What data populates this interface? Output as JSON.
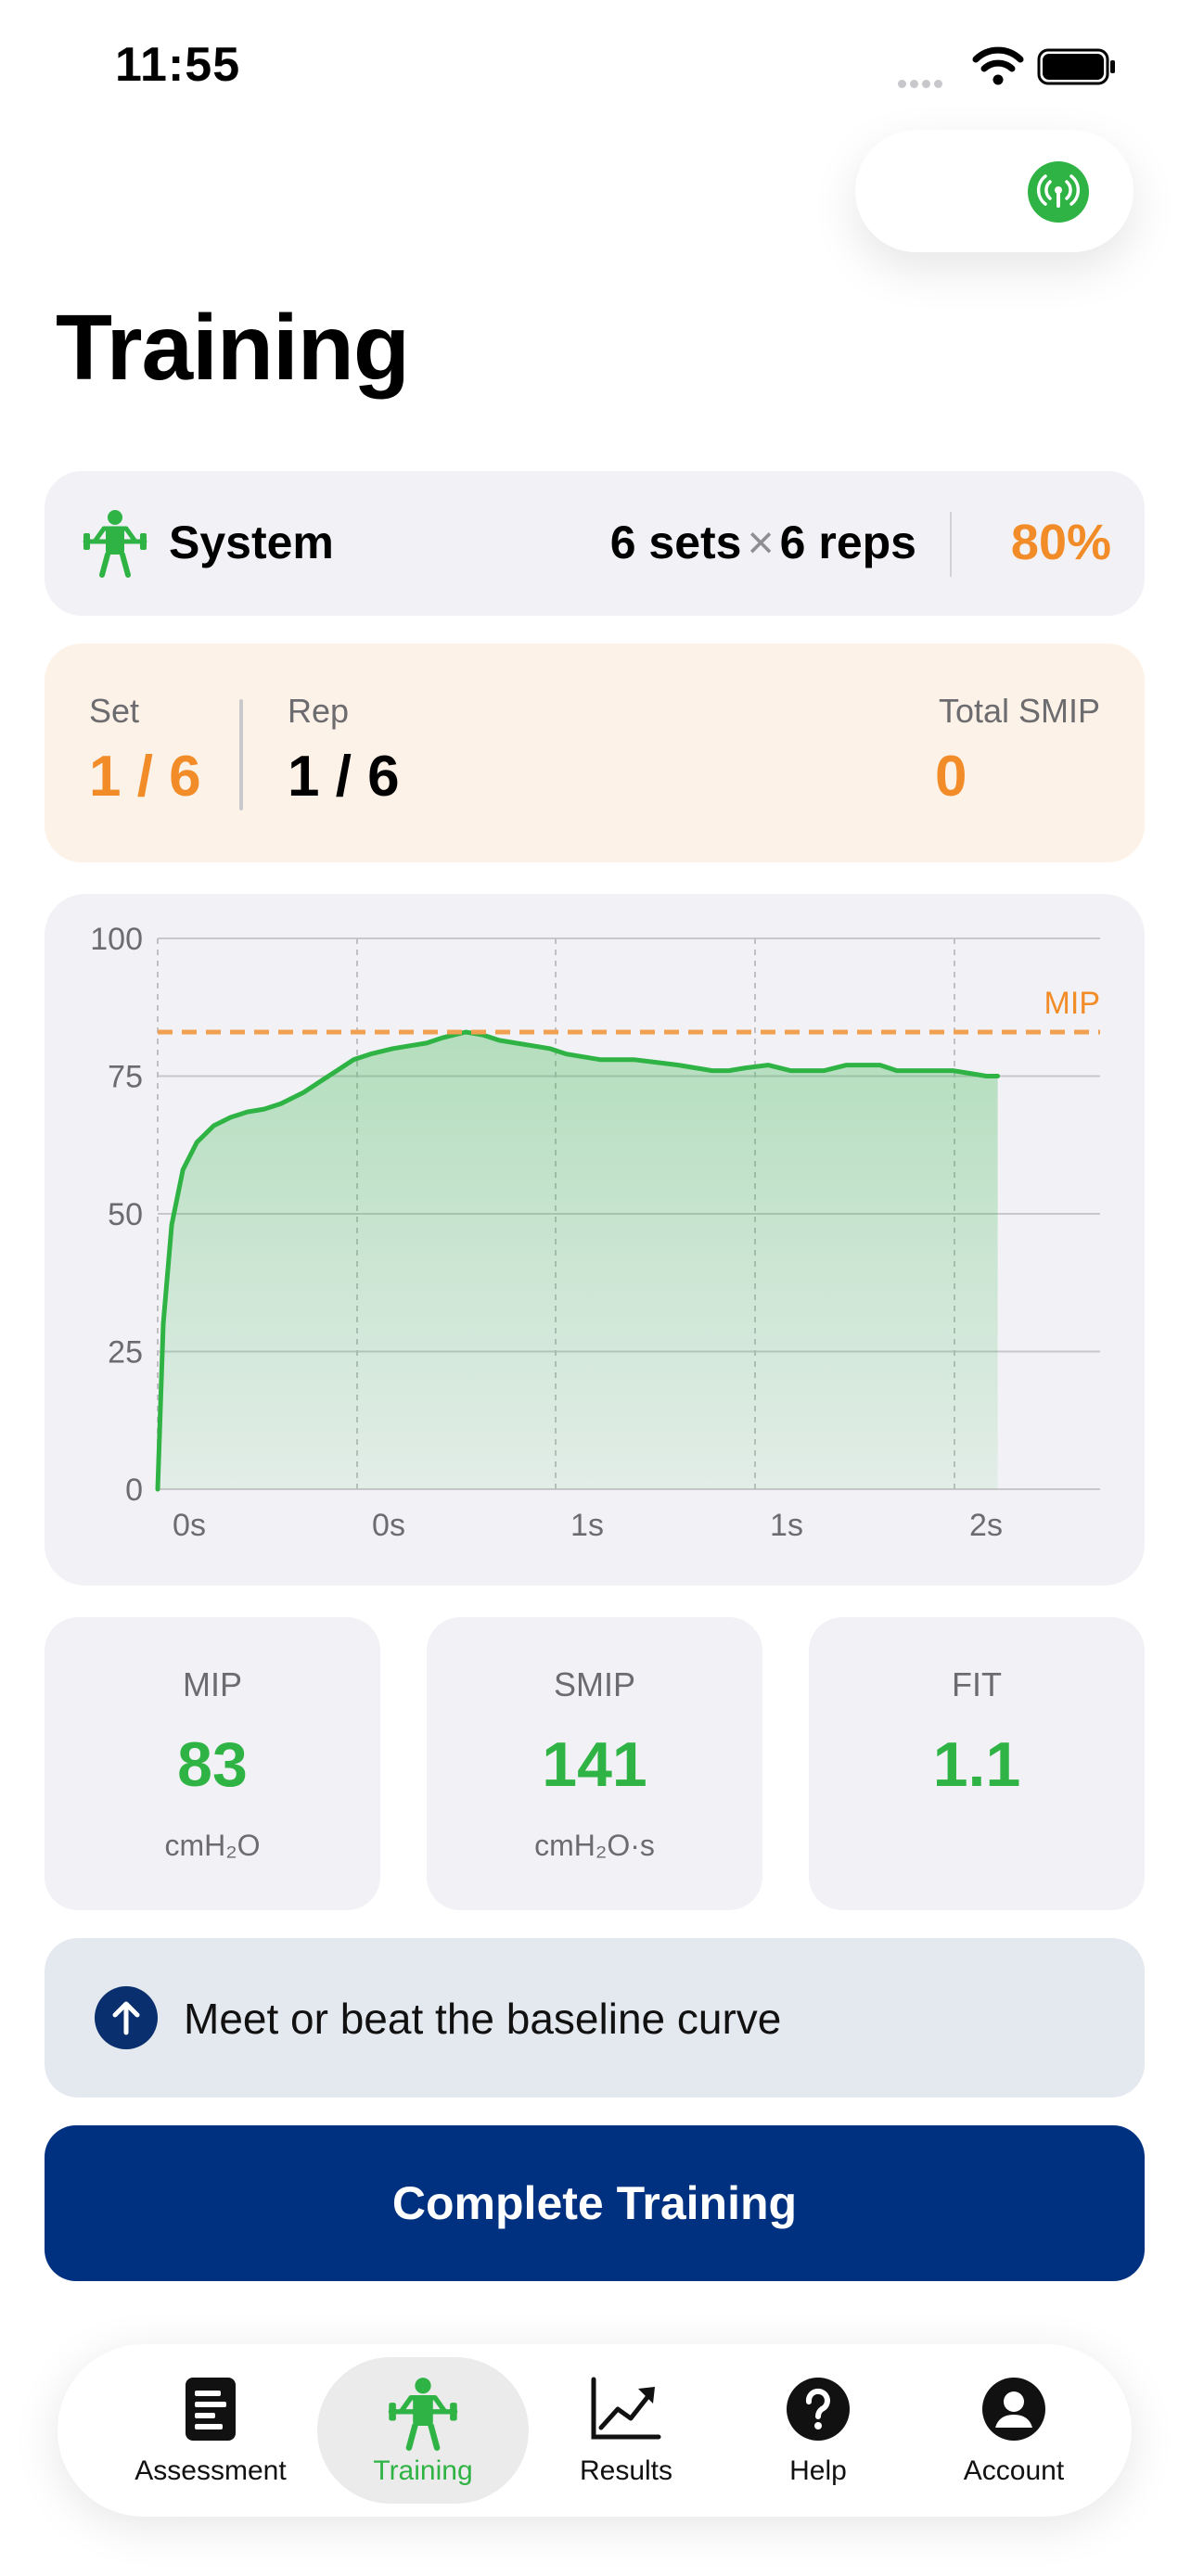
{
  "status_bar": {
    "time": "11:55"
  },
  "title": "Training",
  "system_card": {
    "label": "System",
    "sets": "6 sets",
    "times": "×",
    "reps": "6 reps",
    "intensity": "80%"
  },
  "progress": {
    "set_label": "Set",
    "set_value": "1 / 6",
    "rep_label": "Rep",
    "rep_value": "1 / 6",
    "total_label": "Total SMIP",
    "total_value": "0"
  },
  "chart_data": {
    "type": "area",
    "y_ticks": [
      "100",
      "75",
      "50",
      "25",
      "0"
    ],
    "x_ticks": [
      "0s",
      "0s",
      "1s",
      "1s",
      "2s"
    ],
    "ylim": [
      0,
      100
    ],
    "mip_label": "MIP",
    "mip_value": 83,
    "series": [
      {
        "x": [
          0,
          0.02,
          0.05,
          0.09,
          0.14,
          0.2,
          0.26,
          0.32,
          0.38,
          0.44,
          0.52,
          0.58,
          0.64,
          0.7,
          0.76,
          0.84,
          0.9,
          0.96,
          1.02,
          1.1,
          1.16,
          1.22,
          1.28,
          1.34,
          1.4,
          1.46,
          1.52,
          1.58,
          1.64,
          1.7,
          1.78,
          1.86,
          1.92,
          1.98,
          2.04,
          2.1,
          2.18,
          2.26,
          2.32,
          2.38,
          2.46,
          2.52,
          2.58,
          2.64,
          2.72,
          2.78,
          2.84,
          2.9,
          2.96,
          3.0
        ],
        "values": [
          0,
          30,
          48,
          58,
          63,
          66,
          67.5,
          68.5,
          69,
          70,
          72,
          74,
          76,
          78,
          79,
          80,
          80.5,
          81,
          82,
          83,
          82.5,
          81.5,
          81,
          80.5,
          80,
          79,
          78.5,
          78,
          78,
          78,
          77.5,
          77,
          76.5,
          76,
          76,
          76.5,
          77,
          76,
          76,
          76,
          77,
          77,
          77,
          76,
          76,
          76,
          76,
          75.5,
          75,
          75
        ]
      }
    ],
    "colors": {
      "line": "#2fb344",
      "mip_line": "#f0a050",
      "mip_label": "#f28c28"
    }
  },
  "metrics": [
    {
      "label": "MIP",
      "value": "83",
      "unit": "cmH₂O"
    },
    {
      "label": "SMIP",
      "value": "141",
      "unit": "cmH₂O·s"
    },
    {
      "label": "FIT",
      "value": "1.1",
      "unit": ""
    }
  ],
  "hint": {
    "text": "Meet or beat the baseline curve",
    "icon": "arrow-up-circle-icon"
  },
  "complete_button": {
    "label": "Complete Training"
  },
  "tabs": [
    {
      "label": "Assessment",
      "icon": "assessment-icon"
    },
    {
      "label": "Training",
      "icon": "weightlifter-icon",
      "active": true
    },
    {
      "label": "Results",
      "icon": "chart-up-icon"
    },
    {
      "label": "Help",
      "icon": "help-circle-icon"
    },
    {
      "label": "Account",
      "icon": "person-circle-icon"
    }
  ],
  "colors": {
    "accent_green": "#2fb344",
    "accent_orange": "#f28c28",
    "primary_navy": "#003180"
  }
}
